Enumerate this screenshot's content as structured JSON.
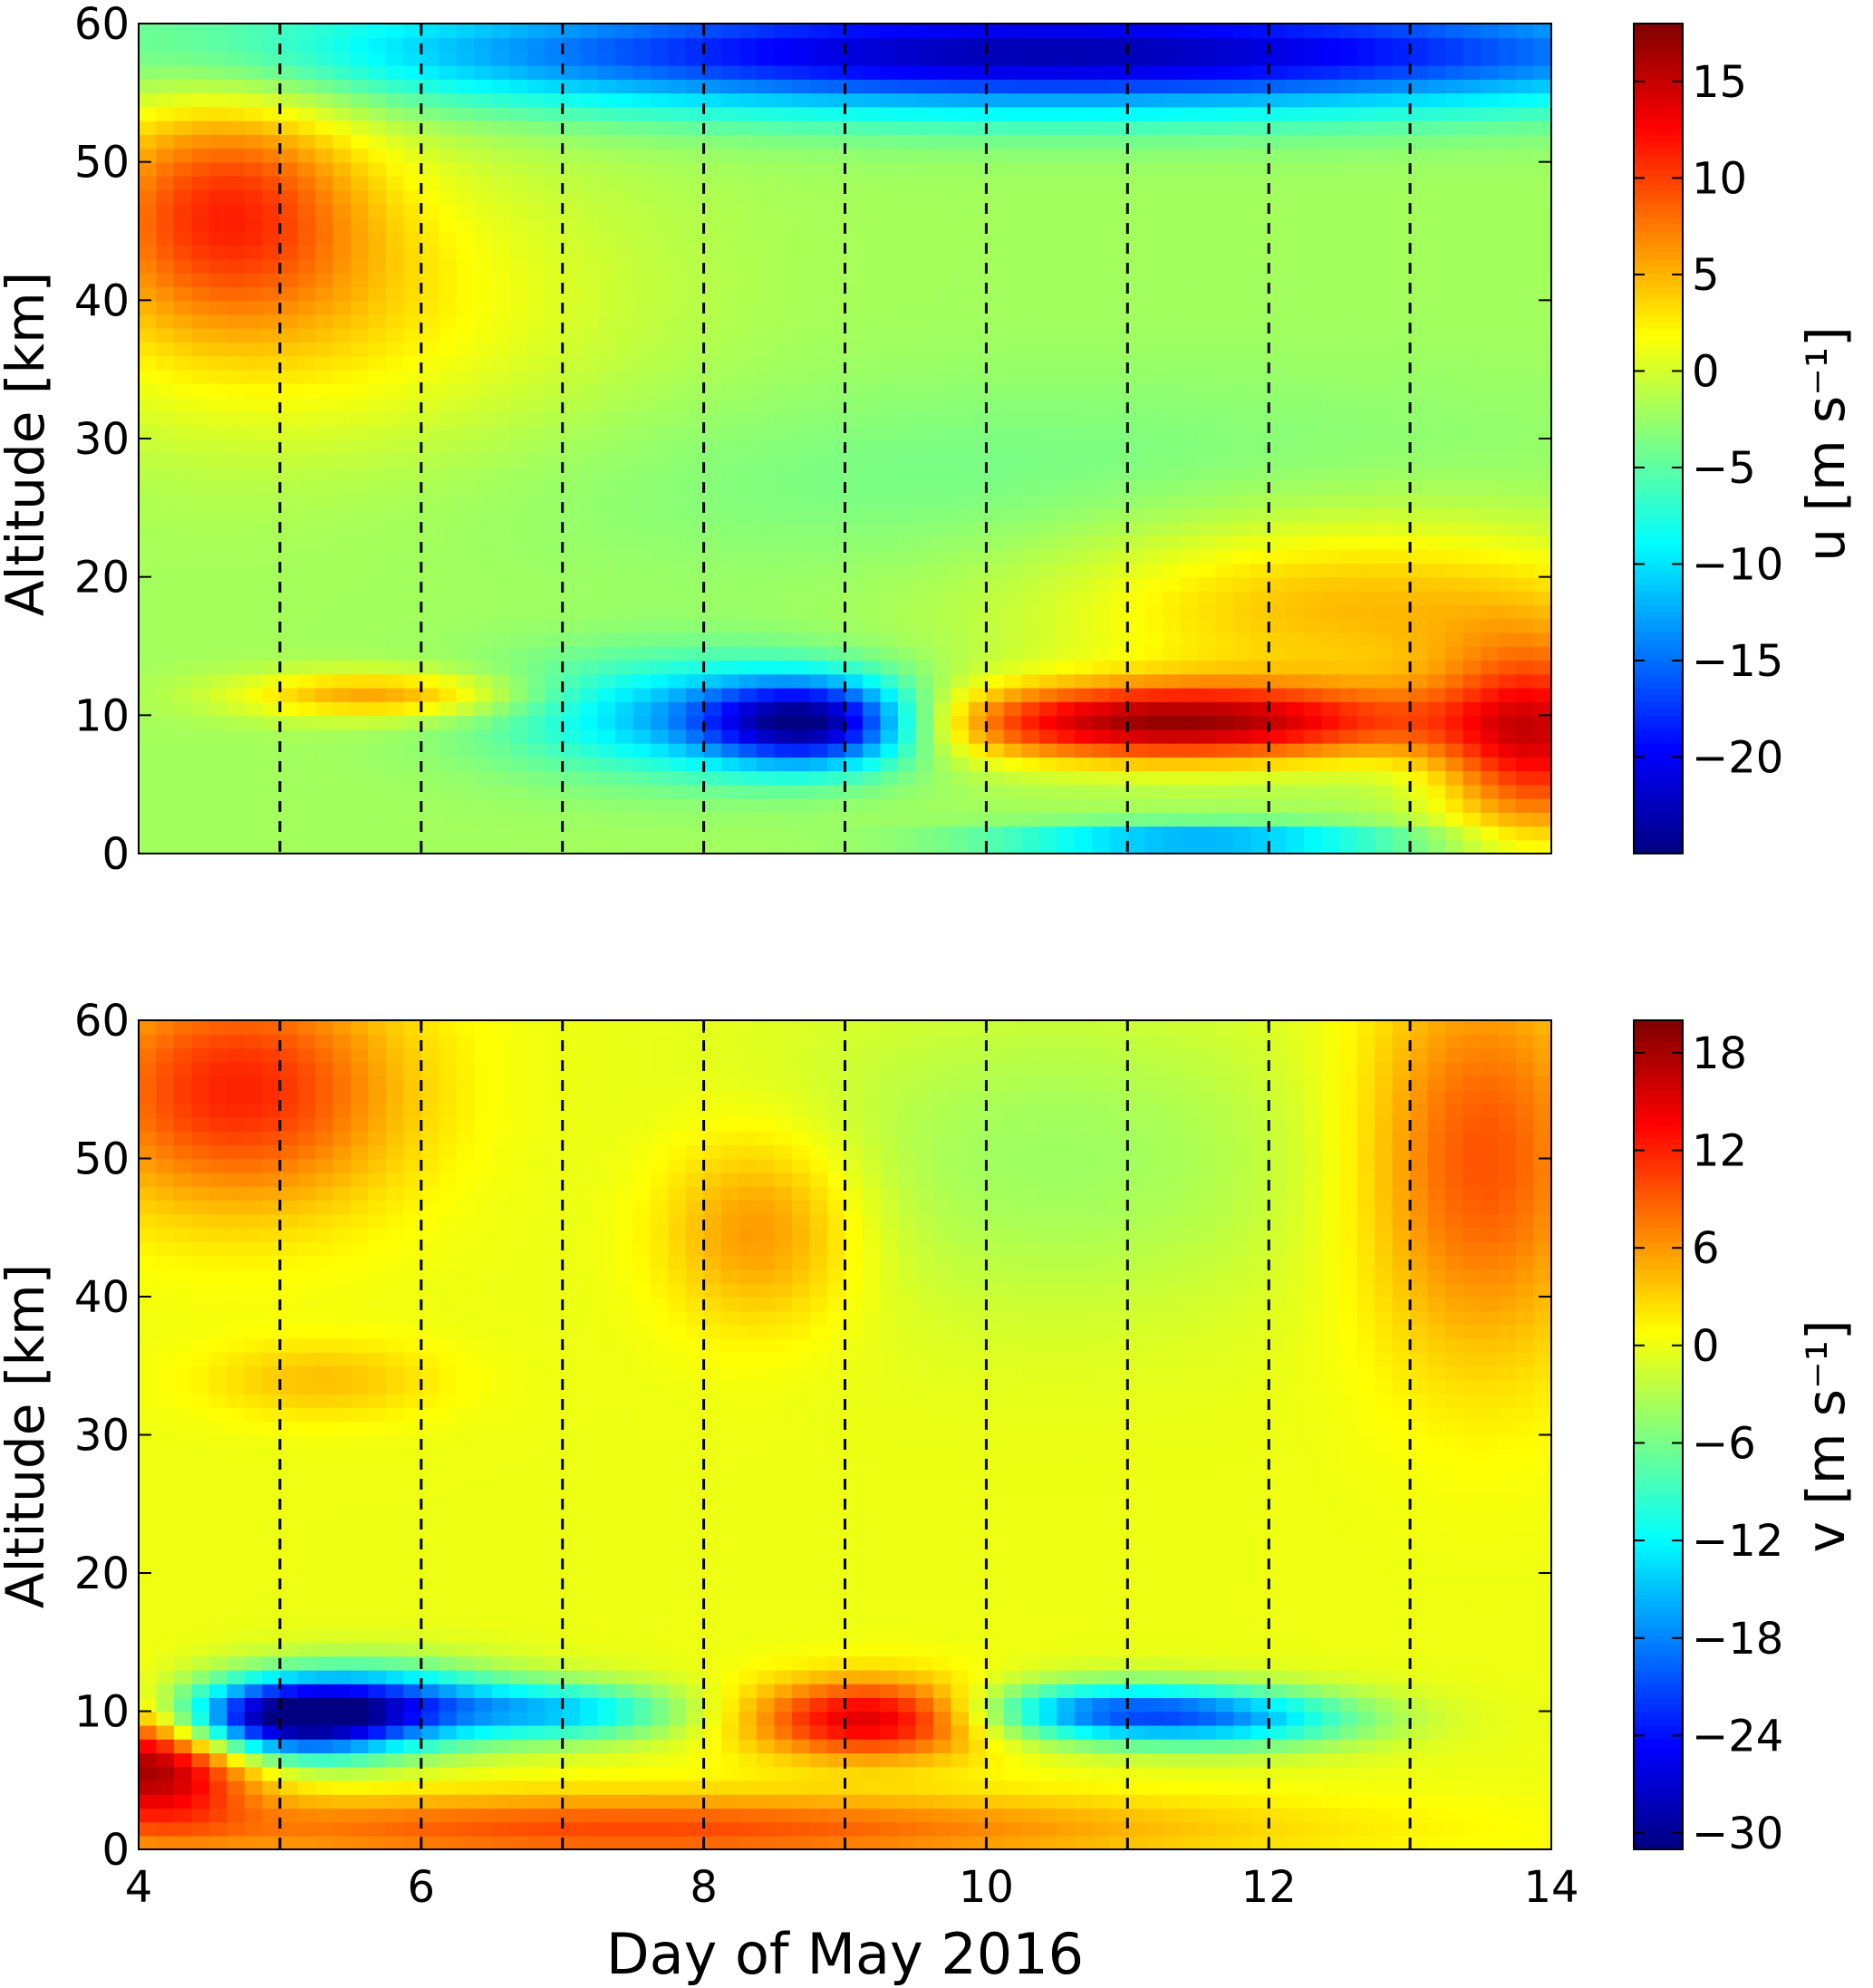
{
  "chart_data": [
    {
      "type": "heatmap",
      "panel": "top",
      "quantity": "u",
      "xlabel": "",
      "ylabel": "Altitude [km]",
      "colorbar_label": "u [m s⁻¹]",
      "colormap": "jet",
      "xlim": [
        4,
        14
      ],
      "ylim": [
        0,
        60
      ],
      "clim": [
        -25,
        18
      ],
      "y_ticks": [
        0,
        10,
        20,
        30,
        40,
        50,
        60
      ],
      "colorbar_ticks": [
        -20,
        -15,
        -10,
        -5,
        0,
        5,
        10,
        15
      ],
      "colorbar_tick_labels": [
        "−20",
        "−15",
        "−10",
        "−5",
        "0",
        "5",
        "10",
        "15"
      ],
      "vertical_dashed_lines_at_day": [
        5,
        6,
        7,
        8,
        9,
        10,
        11,
        12,
        13
      ],
      "background_value": -2,
      "features": [
        {
          "center_day": 8.8,
          "center_alt_km": 9.5,
          "sigma_day": 0.55,
          "sigma_alt_km": 2.2,
          "value_delta": -21
        },
        {
          "center_day": 7.8,
          "center_alt_km": 10,
          "sigma_day": 0.9,
          "sigma_alt_km": 3,
          "value_delta": -9
        },
        {
          "center_day": 11.3,
          "center_alt_km": 9.5,
          "sigma_day": 1.3,
          "sigma_alt_km": 2,
          "value_delta": 18
        },
        {
          "center_day": 13.9,
          "center_alt_km": 8,
          "sigma_day": 0.5,
          "sigma_alt_km": 5,
          "value_delta": 14
        },
        {
          "center_day": 12.6,
          "center_alt_km": 18,
          "sigma_day": 1.5,
          "sigma_alt_km": 5,
          "value_delta": 7
        },
        {
          "center_day": 5.7,
          "center_alt_km": 11.5,
          "sigma_day": 0.7,
          "sigma_alt_km": 1.2,
          "value_delta": 8
        },
        {
          "center_day": 4.6,
          "center_alt_km": 47,
          "sigma_day": 0.7,
          "sigma_alt_km": 6,
          "value_delta": 10
        },
        {
          "center_day": 5.2,
          "center_alt_km": 40,
          "sigma_day": 1.5,
          "sigma_alt_km": 8,
          "value_delta": 5
        },
        {
          "center_day": 10.5,
          "center_alt_km": 58,
          "sigma_day": 3.5,
          "sigma_alt_km": 3,
          "value_delta": -21
        },
        {
          "center_day": 11.5,
          "center_alt_km": 1,
          "sigma_day": 1,
          "sigma_alt_km": 0.8,
          "value_delta": -12
        },
        {
          "center_day": 10.5,
          "center_alt_km": 27,
          "sigma_day": 3,
          "sigma_alt_km": 5,
          "value_delta": -2
        }
      ]
    },
    {
      "type": "heatmap",
      "panel": "bottom",
      "quantity": "v",
      "xlabel": "Day of May 2016",
      "ylabel": "Altitude [km]",
      "colorbar_label": "v [m s⁻¹]",
      "colormap": "jet",
      "xlim": [
        4,
        14
      ],
      "ylim": [
        0,
        60
      ],
      "clim": [
        -31,
        20
      ],
      "x_ticks": [
        4,
        6,
        8,
        10,
        12,
        14
      ],
      "y_ticks": [
        0,
        10,
        20,
        30,
        40,
        50,
        60
      ],
      "colorbar_ticks": [
        -30,
        -24,
        -18,
        -12,
        -6,
        0,
        6,
        12,
        18
      ],
      "colorbar_tick_labels": [
        "−30",
        "−24",
        "−18",
        "−12",
        "−6",
        "0",
        "6",
        "12",
        "18"
      ],
      "vertical_dashed_lines_at_day": [
        5,
        6,
        7,
        8,
        9,
        10,
        11,
        12,
        13
      ],
      "background_value": 0,
      "features": [
        {
          "center_day": 5.0,
          "center_alt_km": 9.5,
          "sigma_day": 0.6,
          "sigma_alt_km": 2,
          "value_delta": -30
        },
        {
          "center_day": 5.8,
          "center_alt_km": 10.5,
          "sigma_day": 0.6,
          "sigma_alt_km": 2,
          "value_delta": -15
        },
        {
          "center_day": 7.0,
          "center_alt_km": 10,
          "sigma_day": 0.6,
          "sigma_alt_km": 1.5,
          "value_delta": -13
        },
        {
          "center_day": 10.8,
          "center_alt_km": 10,
          "sigma_day": 0.7,
          "sigma_alt_km": 1.5,
          "value_delta": -16
        },
        {
          "center_day": 11.8,
          "center_alt_km": 9.5,
          "sigma_day": 0.7,
          "sigma_alt_km": 1.5,
          "value_delta": -12
        },
        {
          "center_day": 9.2,
          "center_alt_km": 9.5,
          "sigma_day": 0.6,
          "sigma_alt_km": 2,
          "value_delta": 16
        },
        {
          "center_day": 4.1,
          "center_alt_km": 6.5,
          "sigma_day": 0.5,
          "sigma_alt_km": 3,
          "value_delta": 20
        },
        {
          "center_day": 7.5,
          "center_alt_km": 1.5,
          "sigma_day": 2.8,
          "sigma_alt_km": 1.8,
          "value_delta": 10
        },
        {
          "center_day": 4.7,
          "center_alt_km": 55,
          "sigma_day": 0.8,
          "sigma_alt_km": 6,
          "value_delta": 12
        },
        {
          "center_day": 13.5,
          "center_alt_km": 50,
          "sigma_day": 0.6,
          "sigma_alt_km": 10,
          "value_delta": 10
        },
        {
          "center_day": 8.4,
          "center_alt_km": 45,
          "sigma_day": 0.5,
          "sigma_alt_km": 5,
          "value_delta": 7
        },
        {
          "center_day": 10.5,
          "center_alt_km": 50,
          "sigma_day": 1.5,
          "sigma_alt_km": 8,
          "value_delta": -4
        },
        {
          "center_day": 5.3,
          "center_alt_km": 34,
          "sigma_day": 0.6,
          "sigma_alt_km": 2,
          "value_delta": 4
        }
      ]
    }
  ]
}
